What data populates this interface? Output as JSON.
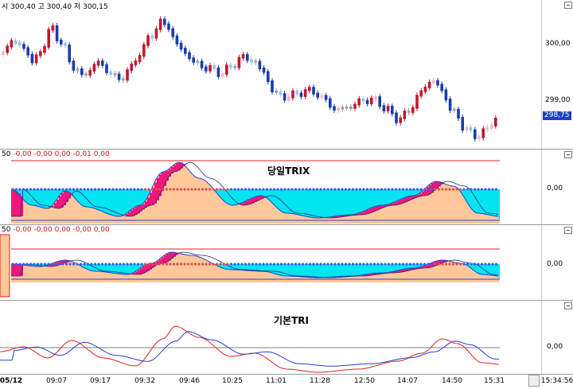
{
  "price_panel": {
    "readout": "시 300,40 고 300,40 저 300,15",
    "y_labels": [
      "300,00",
      "299,00"
    ],
    "last_price": "298,75"
  },
  "trix_panel": {
    "readout_prefix": "50",
    "readout_values": "-0,00 -0,00 0,00 -0,01",
    "readout_last": "0,00",
    "title": "당일TRIX",
    "zero_label": "0,00"
  },
  "trix2_panel": {
    "readout_prefix": "50",
    "readout_values": "-0,00 -0,00 0,00 -0,00",
    "readout_last": "0,00",
    "zero_label": "0,00"
  },
  "tri_panel": {
    "title": "기본TRI",
    "zero_label": "0,00"
  },
  "time_axis": {
    "date": "05/12",
    "ticks": [
      "09:07",
      "09:17",
      "09:32",
      "09:46",
      "10:25",
      "11:01",
      "11:28",
      "12:50",
      "14:07",
      "14:50",
      "15:31"
    ],
    "clock": "15:34:56"
  },
  "colors": {
    "rise_dark": "#c0182e",
    "rise_light": "#f0b8c6",
    "fall_dark": "#1a3caa",
    "fall_light": "#9cc4ec",
    "neutral": "#9a9aa2",
    "fill_cyan": "#00e5f0",
    "fill_peach": "#ffc89a",
    "fill_magenta": "#f0167a",
    "line_red": "#e02020",
    "line_blue": "#2040d0"
  }
}
